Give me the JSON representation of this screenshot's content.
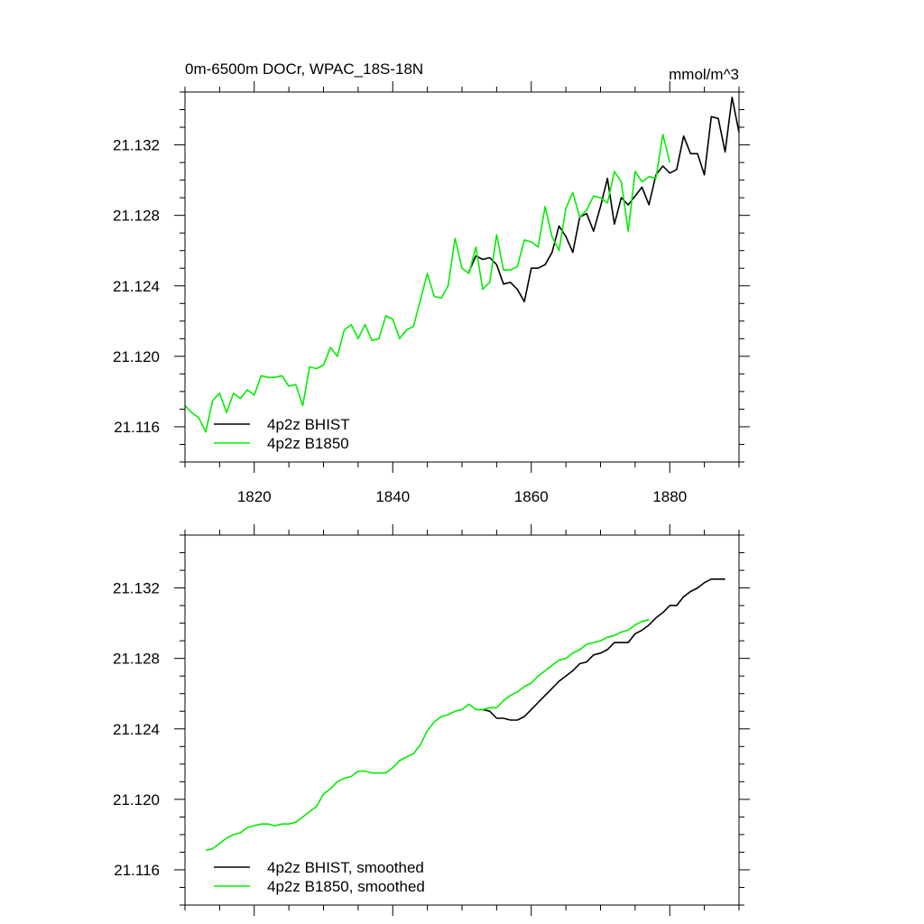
{
  "chart_data": [
    {
      "type": "line",
      "title": "0m-6500m DOCr, WPAC_18S-18N",
      "units": "mmol/m^3",
      "xlim": [
        1810,
        1890
      ],
      "ylim": [
        21.114,
        21.135
      ],
      "x_ticks": [
        1820,
        1840,
        1860,
        1880
      ],
      "y_ticks": [
        21.116,
        21.12,
        21.124,
        21.128,
        21.132
      ],
      "x_tick_labels": [
        "1820",
        "1840",
        "1860",
        "1880"
      ],
      "y_tick_labels": [
        "21.116",
        "21.120",
        "21.124",
        "21.128",
        "21.132"
      ],
      "legend_position": "bottom-left",
      "series": [
        {
          "name": "4p2z BHIST",
          "color": "#000000",
          "x": [
            1851,
            1852,
            1853,
            1854,
            1855,
            1856,
            1857,
            1858,
            1859,
            1860,
            1861,
            1862,
            1863,
            1864,
            1865,
            1866,
            1867,
            1868,
            1869,
            1870,
            1871,
            1872,
            1873,
            1874,
            1875,
            1876,
            1877,
            1878,
            1879,
            1880,
            1881,
            1882,
            1883,
            1884,
            1885,
            1886,
            1887,
            1888,
            1889,
            1890
          ],
          "y": [
            21.1248,
            21.1257,
            21.1255,
            21.1256,
            21.1252,
            21.1241,
            21.1242,
            21.1238,
            21.1231,
            21.125,
            21.125,
            21.1252,
            21.1259,
            21.1274,
            21.1268,
            21.1259,
            21.1279,
            21.1281,
            21.1271,
            21.1285,
            21.1301,
            21.1275,
            21.129,
            21.1286,
            21.1291,
            21.1296,
            21.1286,
            21.1303,
            21.1308,
            21.1304,
            21.1306,
            21.1325,
            21.1315,
            21.1315,
            21.1303,
            21.1336,
            21.1335,
            21.1316,
            21.1347,
            21.1327
          ]
        },
        {
          "name": "4p2z B1850",
          "color": "#00ee00",
          "x": [
            1810,
            1811,
            1812,
            1813,
            1814,
            1815,
            1816,
            1817,
            1818,
            1819,
            1820,
            1821,
            1822,
            1823,
            1824,
            1825,
            1826,
            1827,
            1828,
            1829,
            1830,
            1831,
            1832,
            1833,
            1834,
            1835,
            1836,
            1837,
            1838,
            1839,
            1840,
            1841,
            1842,
            1843,
            1844,
            1845,
            1846,
            1847,
            1848,
            1849,
            1850,
            1851,
            1852,
            1853,
            1854,
            1855,
            1856,
            1857,
            1858,
            1859,
            1860,
            1861,
            1862,
            1863,
            1864,
            1865,
            1866,
            1867,
            1868,
            1869,
            1870,
            1871,
            1872,
            1873,
            1874,
            1875,
            1876,
            1877,
            1878,
            1879,
            1880
          ],
          "y": [
            21.1172,
            21.1168,
            21.1165,
            21.1157,
            21.1175,
            21.1179,
            21.1168,
            21.1179,
            21.1176,
            21.1181,
            21.1178,
            21.1189,
            21.1188,
            21.1188,
            21.1189,
            21.1183,
            21.1184,
            21.1172,
            21.1194,
            21.1193,
            21.1195,
            21.1205,
            21.12,
            21.1215,
            21.1218,
            21.121,
            21.1218,
            21.1209,
            21.121,
            21.1223,
            21.1221,
            21.121,
            21.1215,
            21.1217,
            21.1232,
            21.1247,
            21.1234,
            21.1233,
            21.124,
            21.1267,
            21.125,
            21.1247,
            21.1262,
            21.1238,
            21.1242,
            21.1269,
            21.1249,
            21.1249,
            21.1251,
            21.1266,
            21.1265,
            21.1262,
            21.1285,
            21.1268,
            21.126,
            21.1284,
            21.1293,
            21.1279,
            21.1283,
            21.1291,
            21.129,
            21.1287,
            21.1305,
            21.1299,
            21.1271,
            21.1305,
            21.1299,
            21.1302,
            21.1301,
            21.1326,
            21.131
          ]
        }
      ]
    },
    {
      "type": "line",
      "xlim": [
        1810,
        1890
      ],
      "ylim": [
        21.114,
        21.135
      ],
      "x_ticks": [
        1820,
        1840,
        1860,
        1880
      ],
      "y_ticks": [
        21.116,
        21.12,
        21.124,
        21.128,
        21.132
      ],
      "y_tick_labels": [
        "21.116",
        "21.120",
        "21.124",
        "21.128",
        "21.132"
      ],
      "legend_position": "bottom-left",
      "series": [
        {
          "name": "4p2z BHIST, smoothed",
          "color": "#000000",
          "x": [
            1852,
            1853,
            1854,
            1855,
            1856,
            1857,
            1858,
            1859,
            1860,
            1861,
            1862,
            1863,
            1864,
            1865,
            1866,
            1867,
            1868,
            1869,
            1870,
            1871,
            1872,
            1873,
            1874,
            1875,
            1876,
            1877,
            1878,
            1879,
            1880,
            1881,
            1882,
            1883,
            1884,
            1885,
            1886,
            1887,
            1888
          ],
          "y": [
            21.1251,
            21.1251,
            21.125,
            21.1246,
            21.1246,
            21.1245,
            21.1245,
            21.1247,
            21.1251,
            21.1255,
            21.1259,
            21.1263,
            21.1267,
            21.127,
            21.1273,
            21.1277,
            21.1278,
            21.1282,
            21.1283,
            21.1285,
            21.1289,
            21.1289,
            21.1289,
            21.1294,
            21.1296,
            21.1299,
            21.1303,
            21.1306,
            21.131,
            21.131,
            21.1315,
            21.1318,
            21.132,
            21.1323,
            21.1325,
            21.1325,
            21.1325
          ]
        },
        {
          "name": "4p2z B1850, smoothed",
          "color": "#00ee00",
          "x": [
            1813,
            1814,
            1815,
            1816,
            1817,
            1818,
            1819,
            1820,
            1821,
            1822,
            1823,
            1824,
            1825,
            1826,
            1827,
            1828,
            1829,
            1830,
            1831,
            1832,
            1833,
            1834,
            1835,
            1836,
            1837,
            1838,
            1839,
            1840,
            1841,
            1842,
            1843,
            1844,
            1845,
            1846,
            1847,
            1848,
            1849,
            1850,
            1851,
            1852,
            1853,
            1854,
            1855,
            1856,
            1857,
            1858,
            1859,
            1860,
            1861,
            1862,
            1863,
            1864,
            1865,
            1866,
            1867,
            1868,
            1869,
            1870,
            1871,
            1872,
            1873,
            1874,
            1875,
            1876,
            1877
          ],
          "y": [
            21.1171,
            21.1172,
            21.1175,
            21.1178,
            21.118,
            21.1181,
            21.1184,
            21.1185,
            21.1186,
            21.1186,
            21.1185,
            21.1186,
            21.1186,
            21.1187,
            21.119,
            21.1193,
            21.1196,
            21.1203,
            21.1206,
            21.121,
            21.1212,
            21.1213,
            21.1216,
            21.1216,
            21.1215,
            21.1215,
            21.1215,
            21.1218,
            21.1222,
            21.1224,
            21.1226,
            21.1231,
            21.1239,
            21.1244,
            21.1247,
            21.1248,
            21.125,
            21.1251,
            21.1254,
            21.1251,
            21.1251,
            21.1252,
            21.1252,
            21.1256,
            21.1259,
            21.1261,
            21.1264,
            21.1266,
            21.127,
            21.1273,
            21.1276,
            21.1279,
            21.128,
            21.1283,
            21.1285,
            21.1288,
            21.1289,
            21.129,
            21.1292,
            21.1293,
            21.1295,
            21.1296,
            21.1299,
            21.1301,
            21.1302
          ]
        }
      ]
    }
  ]
}
